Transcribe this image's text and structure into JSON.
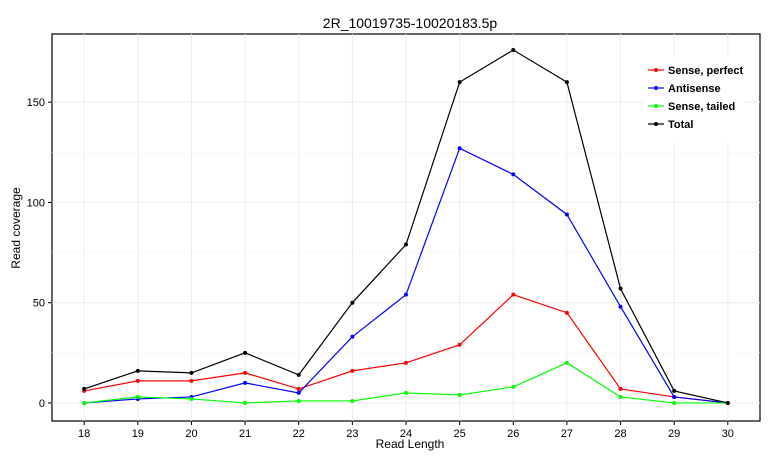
{
  "chart_data": {
    "type": "line",
    "title": "2R_10019735-10020183.5p",
    "xlabel": "Read Length",
    "ylabel": "Read coverage",
    "x": [
      18,
      19,
      20,
      21,
      22,
      23,
      24,
      25,
      26,
      27,
      28,
      29,
      30
    ],
    "xlim": [
      17.4,
      30.6
    ],
    "ylim": [
      -9,
      184
    ],
    "yticks": [
      0,
      50,
      100,
      150
    ],
    "grid": true,
    "legend_position": "top-right",
    "series": [
      {
        "name": "Sense, perfect",
        "color": "#ff0000",
        "values": [
          6,
          11,
          11,
          15,
          7,
          16,
          20,
          29,
          54,
          45,
          7,
          3,
          0
        ]
      },
      {
        "name": "Antisense",
        "color": "#0000ff",
        "values": [
          0,
          2,
          3,
          10,
          5,
          33,
          54,
          127,
          114,
          94,
          48,
          3,
          0
        ]
      },
      {
        "name": "Sense, tailed",
        "color": "#00ff00",
        "values": [
          0,
          3,
          2,
          0,
          1,
          1,
          5,
          4,
          8,
          20,
          3,
          0,
          0
        ]
      },
      {
        "name": "Total",
        "color": "#000000",
        "values": [
          7,
          16,
          15,
          25,
          14,
          50,
          79,
          160,
          176,
          160,
          57,
          6,
          0
        ]
      }
    ]
  }
}
